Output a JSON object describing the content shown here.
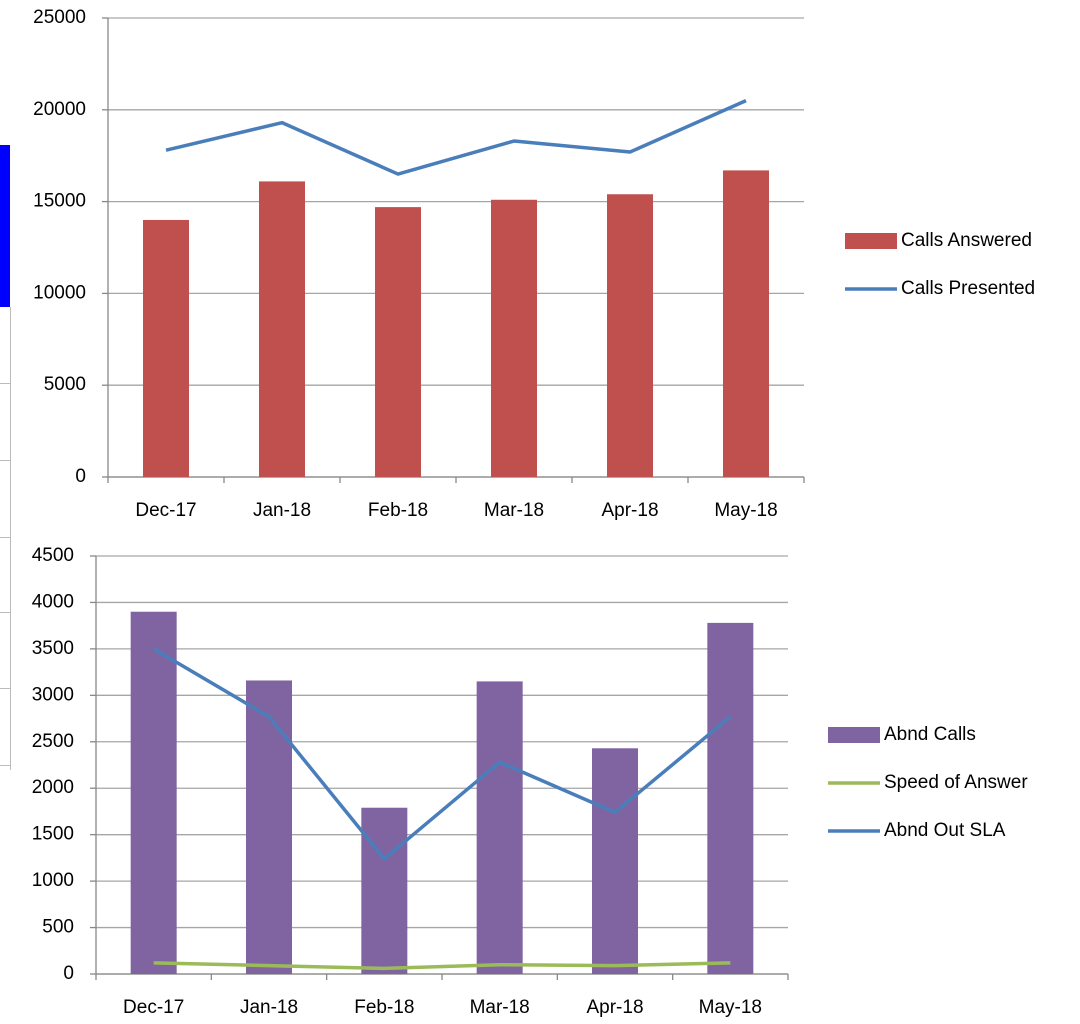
{
  "chart_data": [
    {
      "type": "combo",
      "categories": [
        "Dec-17",
        "Jan-18",
        "Feb-18",
        "Mar-18",
        "Apr-18",
        "May-18"
      ],
      "series": [
        {
          "name": "Calls Answered",
          "type": "bar",
          "color": "#c0504d",
          "values": [
            14000,
            16100,
            14700,
            15100,
            15400,
            16700
          ]
        },
        {
          "name": "Calls Presented",
          "type": "line",
          "color": "#4a7ebb",
          "values": [
            17800,
            19300,
            16500,
            18300,
            17700,
            20500
          ]
        }
      ],
      "ylim": [
        0,
        25000
      ],
      "yticks": [
        0,
        5000,
        10000,
        15000,
        20000,
        25000
      ],
      "grid": true,
      "legend": "right"
    },
    {
      "type": "combo",
      "categories": [
        "Dec-17",
        "Jan-18",
        "Feb-18",
        "Mar-18",
        "Apr-18",
        "May-18"
      ],
      "series": [
        {
          "name": "Abnd Calls",
          "type": "bar",
          "color": "#8064a2",
          "values": [
            3900,
            3160,
            1790,
            3150,
            2430,
            3780
          ]
        },
        {
          "name": "Speed of Answer",
          "type": "line",
          "color": "#9bbb59",
          "values": [
            120,
            90,
            60,
            100,
            90,
            120
          ]
        },
        {
          "name": "Abnd Out SLA",
          "type": "line",
          "color": "#4a7ebb",
          "values": [
            3500,
            2770,
            1240,
            2280,
            1740,
            2770
          ]
        }
      ],
      "ylim": [
        0,
        4500
      ],
      "yticks": [
        0,
        500,
        1000,
        1500,
        2000,
        2500,
        3000,
        3500,
        4000,
        4500
      ],
      "grid": true,
      "legend": "right"
    }
  ]
}
